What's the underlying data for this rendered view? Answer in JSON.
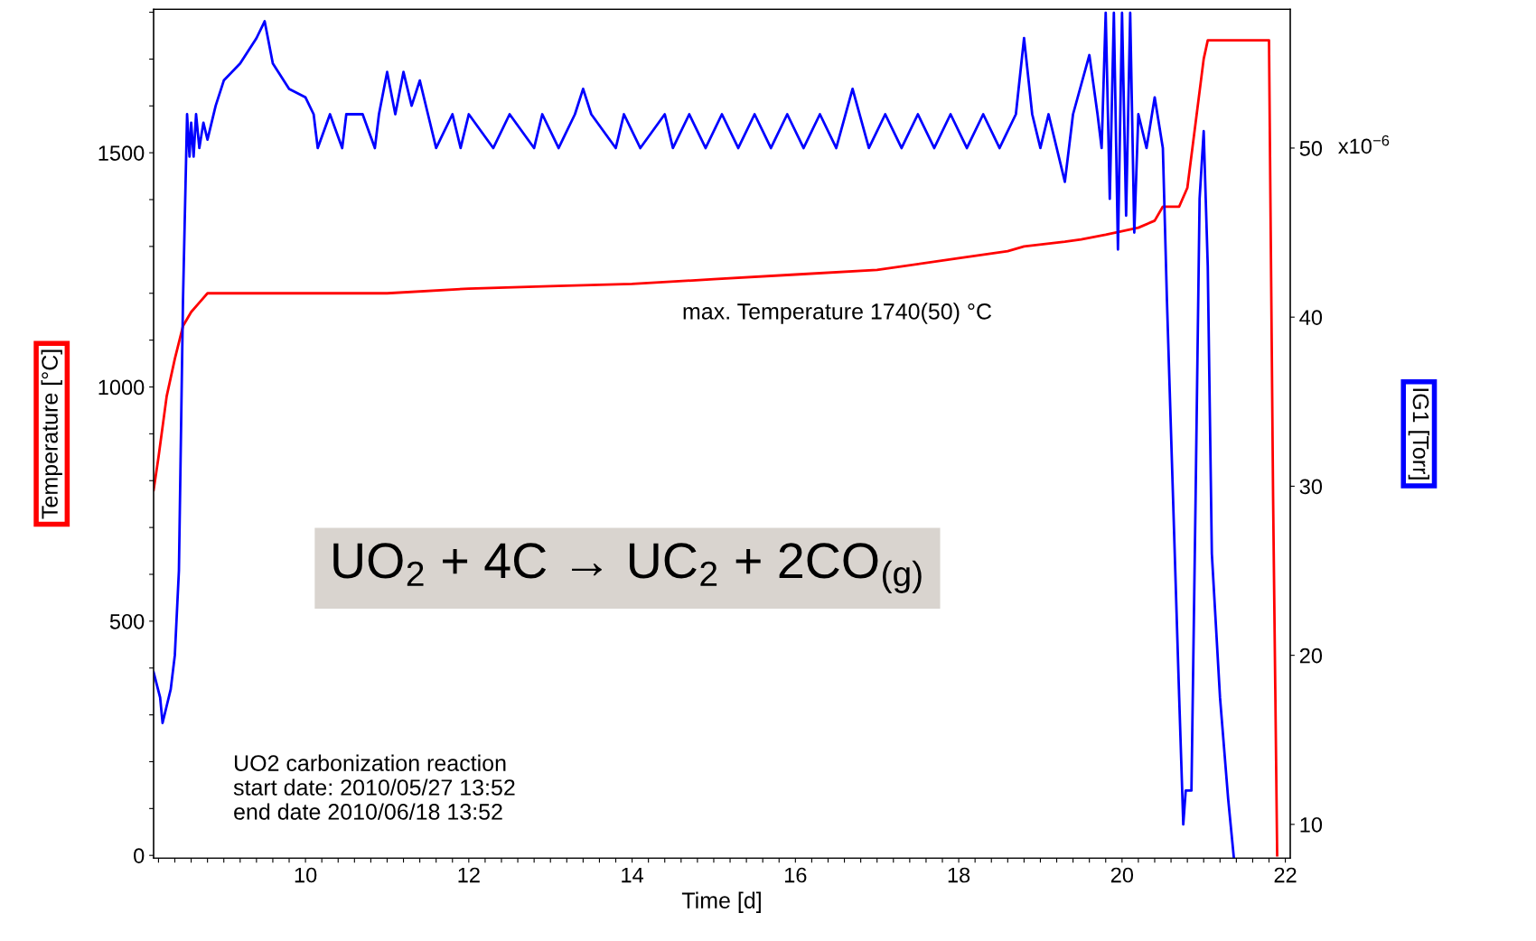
{
  "chart_data": {
    "type": "line",
    "xlabel": "Time [d]",
    "ylabel": "Temperature [°C]",
    "y2label": "IG1 [Torr]",
    "xlim": [
      8.14,
      22.06
    ],
    "ylim": [
      -6,
      1806
    ],
    "y2lim": [
      8.0,
      58.2
    ],
    "xticks": [
      {
        "value": 8.2,
        "label": null
      },
      {
        "value": 8.4,
        "label": null
      },
      {
        "value": 8.6,
        "label": null
      },
      {
        "value": 8.8,
        "label": null
      },
      {
        "value": 9.0,
        "label": null
      },
      {
        "value": 9.2,
        "label": null
      },
      {
        "value": 9.4,
        "label": null
      },
      {
        "value": 9.6,
        "label": null
      },
      {
        "value": 9.8,
        "label": null
      },
      10,
      {
        "value": 10.2,
        "label": null
      },
      {
        "value": 10.4,
        "label": null
      },
      {
        "value": 10.6,
        "label": null
      },
      {
        "value": 10.8,
        "label": null
      },
      {
        "value": 11.0,
        "label": null
      },
      {
        "value": 11.2,
        "label": null
      },
      {
        "value": 11.4,
        "label": null
      },
      {
        "value": 11.6,
        "label": null
      },
      {
        "value": 11.8,
        "label": null
      },
      12,
      {
        "value": 12.2,
        "label": null
      },
      {
        "value": 12.4,
        "label": null
      },
      {
        "value": 12.6,
        "label": null
      },
      {
        "value": 12.8,
        "label": null
      },
      {
        "value": 13.0,
        "label": null
      },
      {
        "value": 13.2,
        "label": null
      },
      {
        "value": 13.4,
        "label": null
      },
      {
        "value": 13.6,
        "label": null
      },
      {
        "value": 13.8,
        "label": null
      },
      14,
      {
        "value": 14.2,
        "label": null
      },
      {
        "value": 14.4,
        "label": null
      },
      {
        "value": 14.6,
        "label": null
      },
      {
        "value": 14.8,
        "label": null
      },
      {
        "value": 15.0,
        "label": null
      },
      {
        "value": 15.2,
        "label": null
      },
      {
        "value": 15.4,
        "label": null
      },
      {
        "value": 15.6,
        "label": null
      },
      {
        "value": 15.8,
        "label": null
      },
      16,
      {
        "value": 16.2,
        "label": null
      },
      {
        "value": 16.4,
        "label": null
      },
      {
        "value": 16.6,
        "label": null
      },
      {
        "value": 16.8,
        "label": null
      },
      {
        "value": 17.0,
        "label": null
      },
      {
        "value": 17.2,
        "label": null
      },
      {
        "value": 17.4,
        "label": null
      },
      {
        "value": 17.6,
        "label": null
      },
      {
        "value": 17.8,
        "label": null
      },
      18,
      {
        "value": 18.2,
        "label": null
      },
      {
        "value": 18.4,
        "label": null
      },
      {
        "value": 18.6,
        "label": null
      },
      {
        "value": 18.8,
        "label": null
      },
      {
        "value": 19.0,
        "label": null
      },
      {
        "value": 19.2,
        "label": null
      },
      {
        "value": 19.4,
        "label": null
      },
      {
        "value": 19.6,
        "label": null
      },
      {
        "value": 19.8,
        "label": null
      },
      20,
      {
        "value": 20.2,
        "label": null
      },
      {
        "value": 20.4,
        "label": null
      },
      {
        "value": 20.6,
        "label": null
      },
      {
        "value": 20.8,
        "label": null
      },
      {
        "value": 21.0,
        "label": null
      },
      {
        "value": 21.2,
        "label": null
      },
      {
        "value": 21.4,
        "label": null
      },
      {
        "value": 21.6,
        "label": null
      },
      {
        "value": 21.8,
        "label": null
      },
      22
    ],
    "yticks": [
      0,
      {
        "value": 100,
        "label": null
      },
      {
        "value": 200,
        "label": null
      },
      {
        "value": 300,
        "label": null
      },
      {
        "value": 400,
        "label": null
      },
      500,
      {
        "value": 600,
        "label": null
      },
      {
        "value": 700,
        "label": null
      },
      {
        "value": 800,
        "label": null
      },
      {
        "value": 900,
        "label": null
      },
      1000,
      {
        "value": 1100,
        "label": null
      },
      {
        "value": 1200,
        "label": null
      },
      {
        "value": 1300,
        "label": null
      },
      {
        "value": 1400,
        "label": null
      },
      1500,
      {
        "value": 1600,
        "label": null
      },
      {
        "value": 1700,
        "label": null
      },
      {
        "value": 1800,
        "label": null
      }
    ],
    "y2ticks": [
      10,
      20,
      30,
      40,
      50
    ],
    "grid": false,
    "legend": false,
    "marker": "none",
    "line_style": "solid",
    "series": [
      {
        "color": "#0000ff",
        "axis": "y2",
        "x": [
          8.14,
          8.22,
          8.25,
          8.3,
          8.35,
          8.4,
          8.45,
          8.5,
          8.55,
          8.58,
          8.6,
          8.63,
          8.66,
          8.7,
          8.75,
          8.8,
          8.9,
          9.0,
          9.2,
          9.4,
          9.5,
          9.6,
          9.8,
          10.0,
          10.1,
          10.15,
          10.3,
          10.45,
          10.5,
          10.7,
          10.85,
          10.9,
          11.0,
          11.1,
          11.2,
          11.3,
          11.4,
          11.5,
          11.6,
          11.8,
          11.9,
          12.0,
          12.3,
          12.5,
          12.8,
          12.9,
          13.1,
          13.3,
          13.4,
          13.5,
          13.8,
          13.9,
          14.1,
          14.4,
          14.5,
          14.7,
          14.9,
          15.1,
          15.3,
          15.5,
          15.7,
          15.9,
          16.1,
          16.3,
          16.5,
          16.7,
          16.9,
          17.1,
          17.3,
          17.5,
          17.7,
          17.9,
          18.1,
          18.3,
          18.5,
          18.7,
          18.8,
          18.9,
          19.0,
          19.1,
          19.3,
          19.4,
          19.6,
          19.7,
          19.75,
          19.8,
          19.85,
          19.9,
          19.95,
          20.0,
          20.05,
          20.1,
          20.15,
          20.2,
          20.3,
          20.4,
          20.5,
          20.55,
          20.7,
          20.75,
          20.78,
          20.85,
          20.9,
          20.95,
          21.0,
          21.05,
          21.1,
          21.2,
          21.3,
          21.37
        ],
        "values": [
          19,
          17.5,
          16,
          17,
          18,
          20,
          25,
          41,
          52,
          49.5,
          51.5,
          49.5,
          52,
          50,
          51.5,
          50.5,
          52.5,
          54,
          55,
          56.5,
          57.5,
          55,
          53.5,
          53,
          52,
          50,
          52,
          50,
          52,
          52,
          50,
          52,
          54.5,
          52,
          54.5,
          52.5,
          54,
          52,
          50,
          52,
          50,
          52,
          50,
          52,
          50,
          52,
          50,
          52,
          53.5,
          52,
          50,
          52,
          50,
          52,
          50,
          52,
          50,
          52,
          50,
          52,
          50,
          52,
          50,
          52,
          50,
          53.5,
          50,
          52,
          50,
          52,
          50,
          52,
          50,
          52,
          50,
          52,
          56.5,
          52,
          50,
          52,
          48,
          52,
          55.5,
          52,
          50,
          58,
          47,
          58,
          44,
          58,
          46,
          58,
          45,
          52,
          50,
          53,
          50,
          41,
          17.5,
          10,
          12,
          12,
          29,
          47,
          51,
          43,
          26,
          17.5,
          11.5,
          8
        ]
      },
      {
        "color": "#ff0000",
        "x": [
          8.14,
          8.2,
          8.3,
          8.4,
          8.5,
          8.6,
          8.7,
          8.8,
          9.0,
          10,
          11,
          12,
          13,
          14,
          15,
          16,
          17,
          18,
          18.6,
          18.8,
          19.3,
          19.5,
          19.8,
          20.2,
          20.4,
          20.5,
          20.7,
          20.8,
          21.0,
          21.05,
          21.8,
          21.85,
          21.9
        ],
        "values": [
          780,
          850,
          980,
          1060,
          1130,
          1160,
          1180,
          1200,
          1200,
          1200,
          1200,
          1210,
          1215,
          1220,
          1230,
          1240,
          1250,
          1275,
          1290,
          1300,
          1310,
          1315,
          1325,
          1340,
          1355,
          1385,
          1385,
          1425,
          1700,
          1740,
          1740,
          765,
          0
        ]
      }
    ],
    "annotations": [
      "max. Temperature 1740(50) °C",
      "UO$_{2}$ + 4C → UC$_{2}$ + 2CO$_{(g)}$",
      "UO2 carbonization reaction\nstart date: 2010/05/27 13:52\nend date 2010/06/18 13:52",
      "x10$^{−6}$"
    ]
  }
}
